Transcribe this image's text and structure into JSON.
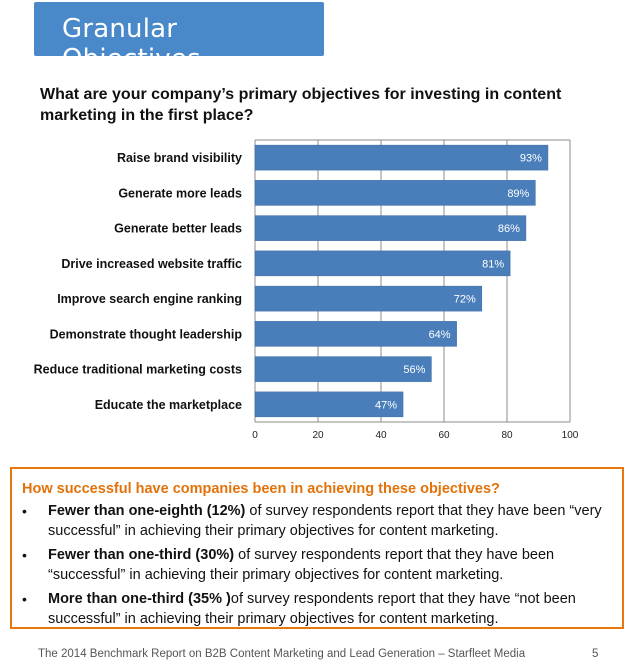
{
  "header": {
    "title": "Granular Objectives"
  },
  "question": "What are your company’s primary objectives for investing in content marketing in the first place?",
  "chart_data": {
    "type": "bar",
    "orientation": "horizontal",
    "categories": [
      "Raise brand visibility",
      "Generate more leads",
      "Generate better leads",
      "Drive increased website traffic",
      "Improve search engine ranking",
      "Demonstrate thought leadership",
      "Reduce traditional marketing costs",
      "Educate the marketplace"
    ],
    "values": [
      93,
      89,
      86,
      81,
      72,
      64,
      56,
      47
    ],
    "data_labels": [
      "93%",
      "89%",
      "86%",
      "81%",
      "72%",
      "64%",
      "56%",
      "47%"
    ],
    "xlim": [
      0,
      100
    ],
    "xticks": [
      0,
      20,
      40,
      60,
      80,
      100
    ],
    "grid": true,
    "bar_color": "#4a7ebb"
  },
  "callout": {
    "heading": "How successful have companies been in achieving these objectives?",
    "items": [
      {
        "bold": "Fewer than one-eighth (12%)",
        "text": " of survey respondents report that they have been “very successful” in  achieving their primary objectives for content marketing."
      },
      {
        "bold": "Fewer than one-third (30%)",
        "text": " of survey respondents report that they have been “successful” in  achieving their primary objectives for content marketing."
      },
      {
        "bold": "More than one-third (35% )",
        "text": "of survey respondents report that they have “not been successful” in achieving their primary objectives for content marketing."
      }
    ],
    "bullet": "•"
  },
  "footer": {
    "text": "The 2014 Benchmark Report on B2B Content Marketing and Lead Generation – Starfleet Media",
    "page": "5"
  },
  "colors": {
    "title_bg": "#4a89c9",
    "accent": "#e2720a",
    "bar": "#4a7ebb"
  }
}
